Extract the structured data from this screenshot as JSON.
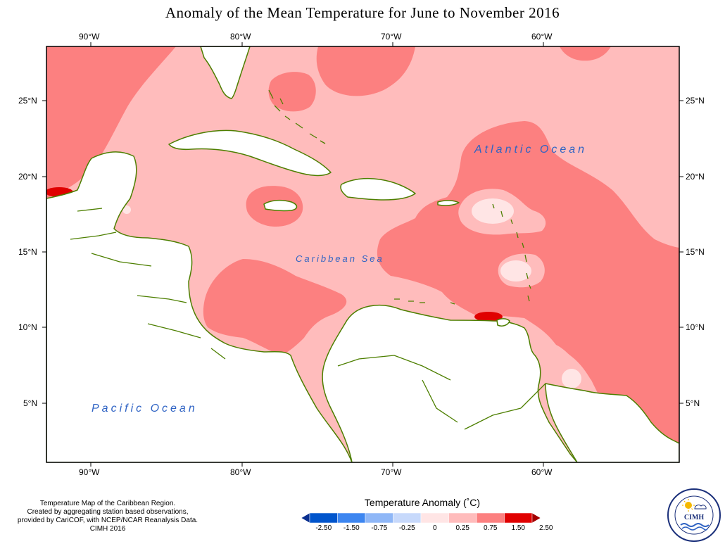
{
  "title": "Anomaly of the Mean Temperature for June to November 2016",
  "axes": {
    "top_ticks": [
      "90°W",
      "80°W",
      "70°W",
      "60°W"
    ],
    "bottom_ticks": [
      "90°W",
      "80°W",
      "70°W",
      "60°W"
    ],
    "left_ticks": [
      "25°N",
      "20°N",
      "15°N",
      "10°N",
      "5°N"
    ],
    "right_ticks": [
      "25°N",
      "20°N",
      "15°N",
      "10°N",
      "5°N"
    ]
  },
  "map_labels": {
    "atlantic": "Atlantic Ocean",
    "caribbean": "Caribbean Sea",
    "pacific": "Pacific Ocean"
  },
  "credits": {
    "line1": "Temperature Map of the Caribbean Region.",
    "line2": "Created by aggregating station based observations,",
    "line3": "provided by CariCOF, with NCEP/NCAR Reanalysis Data.",
    "line4": "CIMH 2016"
  },
  "legend": {
    "title": "Temperature Anomaly (˚C)",
    "labels": [
      "-2.50",
      "-1.50",
      "-0.75",
      "-0.25",
      "0",
      "0.25",
      "0.75",
      "1.50",
      "2.50"
    ],
    "colors": [
      "#0a2f8f",
      "#0055cc",
      "#3d86f0",
      "#8fb7f7",
      "#c7d9fb",
      "#ffe5e5",
      "#ffbcbc",
      "#fc8080",
      "#e00000",
      "#a30000"
    ]
  },
  "fill_colors": {
    "class_0_to_0_25": "#ffe5e5",
    "class_0_25_to_0_75": "#ffbcbc",
    "class_0_75_to_1_5": "#fc8080",
    "class_1_5_to_2_5": "#e00000",
    "coastline": "#4d7f00"
  },
  "logo": {
    "text": "CIMH",
    "icon": "sun-cloud-wave-icon"
  }
}
